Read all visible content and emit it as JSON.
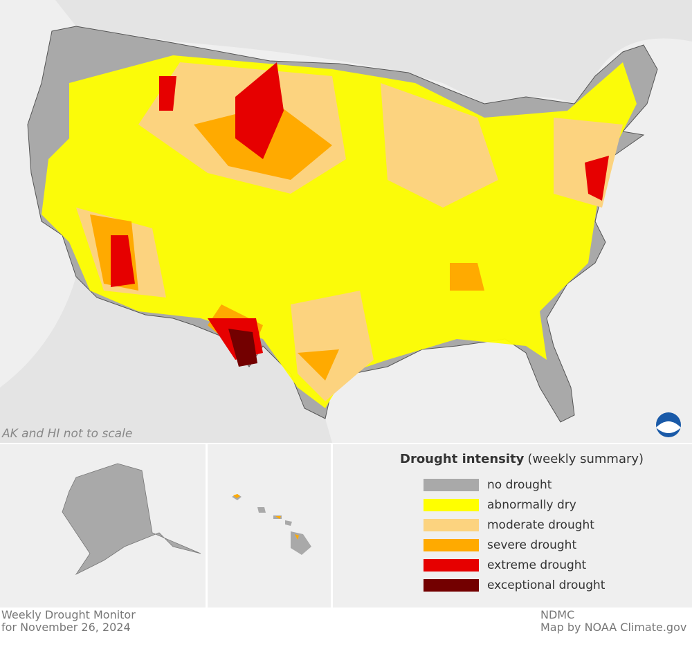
{
  "map": {
    "note": "AK and HI not to scale"
  },
  "legend": {
    "title": "Drought intensity",
    "subtitle": "(weekly summary)",
    "items": [
      {
        "label": "no drought",
        "color": "#a9a9a9"
      },
      {
        "label": "abnormally dry",
        "color": "#ffff00"
      },
      {
        "label": "moderate drought",
        "color": "#fcd37f"
      },
      {
        "label": "severe drought",
        "color": "#ffaa00"
      },
      {
        "label": "extreme drought",
        "color": "#e60000"
      },
      {
        "label": "exceptional drought",
        "color": "#730000"
      }
    ]
  },
  "footer": {
    "left": [
      "Weekly Drought Monitor",
      "for November 26, 2024"
    ],
    "right": [
      "NDMC",
      "Map by NOAA Climate.gov"
    ]
  }
}
